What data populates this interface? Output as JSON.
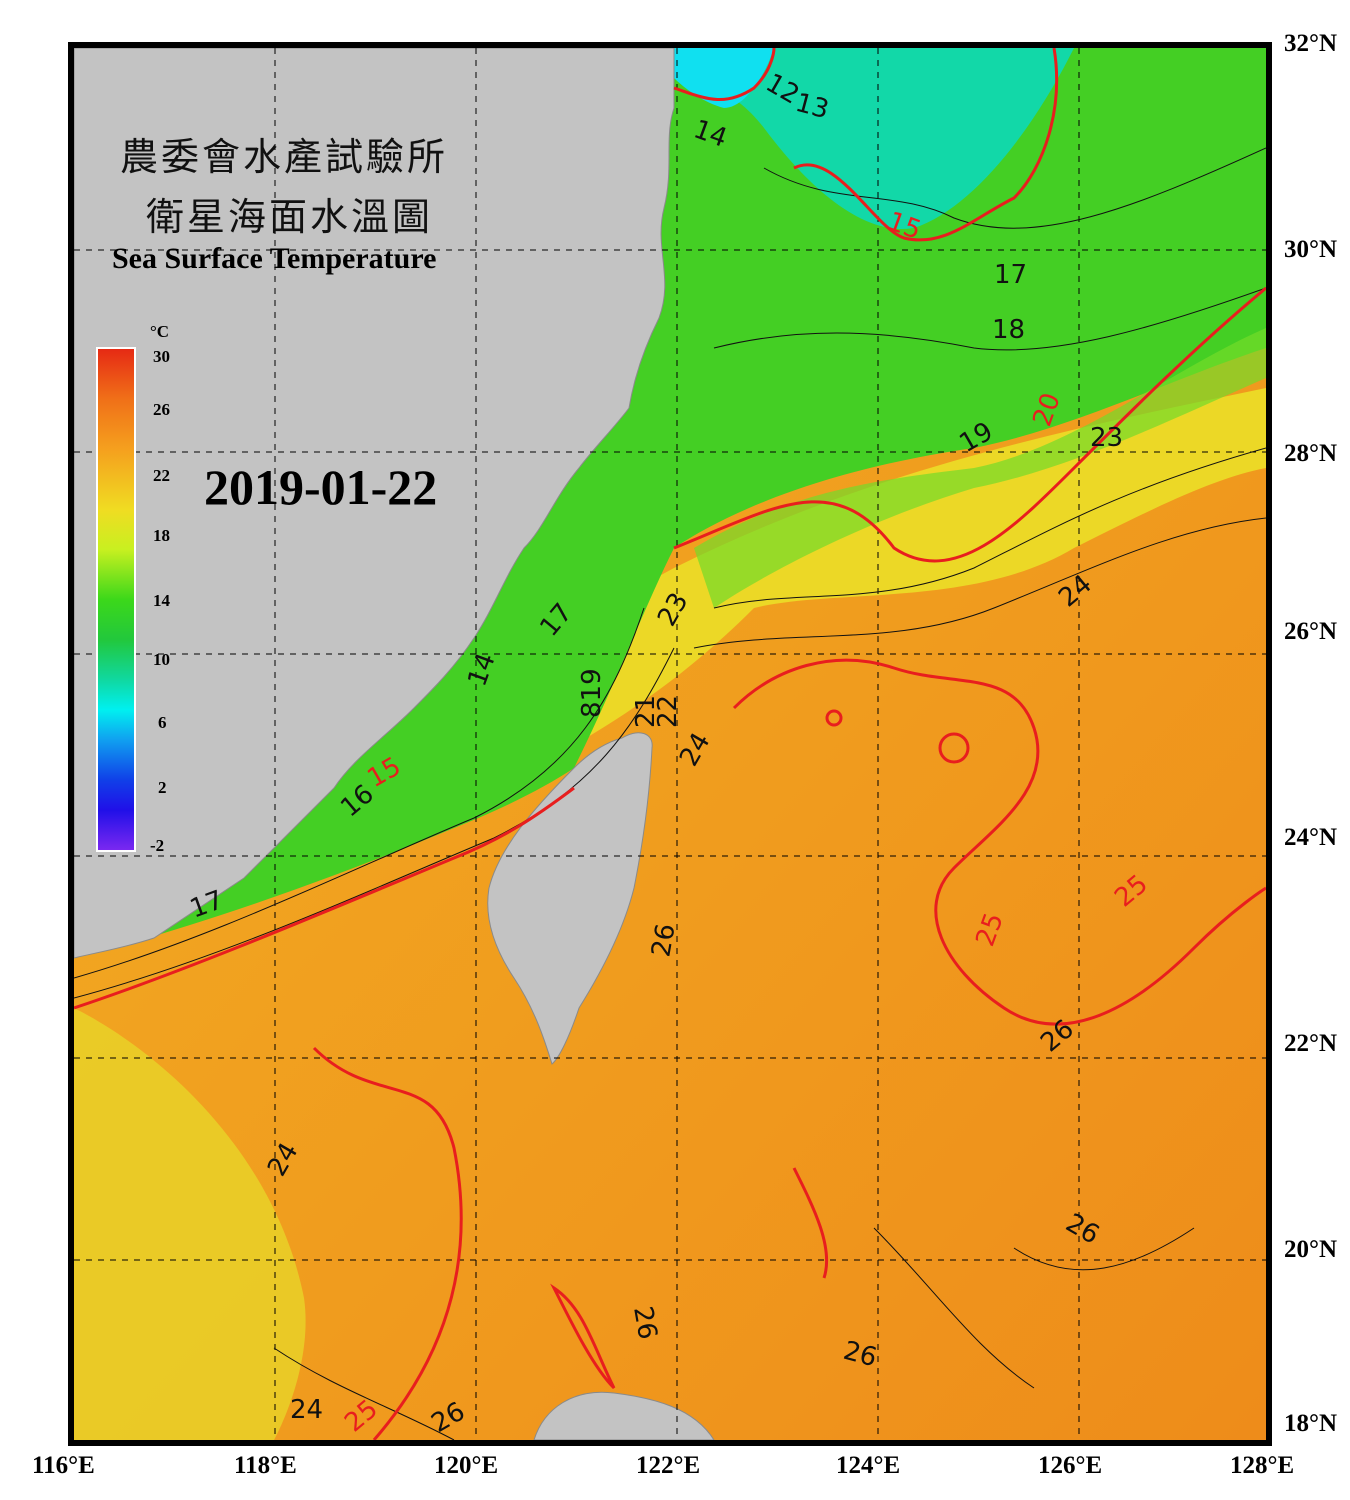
{
  "title": {
    "line1": "農委會水產試驗所",
    "line2": "衛星海面水溫圖",
    "english": "Sea Surface Temperature"
  },
  "date": "2019-01-22",
  "colorbar": {
    "unit": "°C",
    "ticks": [
      "30",
      "26",
      "22",
      "18",
      "14",
      "10",
      "6",
      "2",
      "-2"
    ]
  },
  "axes": {
    "lat_labels": [
      "32°N",
      "30°N",
      "28°N",
      "26°N",
      "24°N",
      "22°N",
      "20°N",
      "18°N"
    ],
    "lon_labels": [
      "116°E",
      "118°E",
      "120°E",
      "122°E",
      "124°E",
      "126°E",
      "128°E"
    ],
    "lat_range": [
      18,
      32
    ],
    "lon_range": [
      116,
      128
    ]
  },
  "contour_labels": [
    "12",
    "13",
    "14",
    "15",
    "15",
    "15",
    "15",
    "17",
    "18",
    "19",
    "20",
    "20",
    "21",
    "22",
    "23",
    "17",
    "14",
    "15",
    "16",
    "23",
    "24",
    "17",
    "21",
    "22",
    "24",
    "25",
    "25",
    "25",
    "26",
    "26",
    "24",
    "26",
    "26",
    "26",
    "24",
    "25",
    "26",
    "819"
  ],
  "colors": {
    "land": "#c3c3c3",
    "warm_sea": "#f2a21a",
    "cool_sea": "#4ad22a",
    "isotherm_bold": "#e81e1e"
  }
}
